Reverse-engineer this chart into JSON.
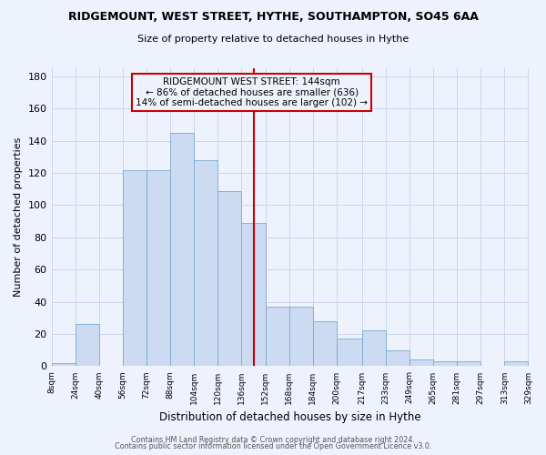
{
  "title": "RIDGEMOUNT, WEST STREET, HYTHE, SOUTHAMPTON, SO45 6AA",
  "subtitle": "Size of property relative to detached houses in Hythe",
  "xlabel": "Distribution of detached houses by size in Hythe",
  "ylabel": "Number of detached properties",
  "bin_edges": [
    8,
    24,
    40,
    56,
    72,
    88,
    104,
    120,
    136,
    152,
    168,
    184,
    200,
    217,
    233,
    249,
    265,
    281,
    297,
    313,
    329
  ],
  "bar_heights": [
    2,
    26,
    0,
    122,
    122,
    145,
    128,
    109,
    89,
    37,
    37,
    28,
    17,
    22,
    10,
    4,
    3,
    3,
    0,
    3
  ],
  "bar_color": "#ccdaf2",
  "bar_edge_color": "#7aaad0",
  "vline_x": 144,
  "vline_color": "#cc0000",
  "annotation_title": "RIDGEMOUNT WEST STREET: 144sqm",
  "annotation_line1": "← 86% of detached houses are smaller (636)",
  "annotation_line2": "14% of semi-detached houses are larger (102) →",
  "annotation_box_edge": "#cc0000",
  "ylim": [
    0,
    185
  ],
  "yticks": [
    0,
    20,
    40,
    60,
    80,
    100,
    120,
    140,
    160,
    180
  ],
  "tick_labels": [
    "8sqm",
    "24sqm",
    "40sqm",
    "56sqm",
    "72sqm",
    "88sqm",
    "104sqm",
    "120sqm",
    "136sqm",
    "152sqm",
    "168sqm",
    "184sqm",
    "200sqm",
    "217sqm",
    "233sqm",
    "249sqm",
    "265sqm",
    "281sqm",
    "297sqm",
    "313sqm",
    "329sqm"
  ],
  "footer1": "Contains HM Land Registry data © Crown copyright and database right 2024.",
  "footer2": "Contains public sector information licensed under the Open Government Licence v3.0.",
  "bg_color": "#eef2fc",
  "grid_color": "#cad6ee",
  "title_fontsize": 9,
  "subtitle_fontsize": 8,
  "ylabel_fontsize": 8,
  "xlabel_fontsize": 8.5,
  "ytick_fontsize": 8,
  "xtick_fontsize": 6.5,
  "footer_fontsize": 5.8
}
